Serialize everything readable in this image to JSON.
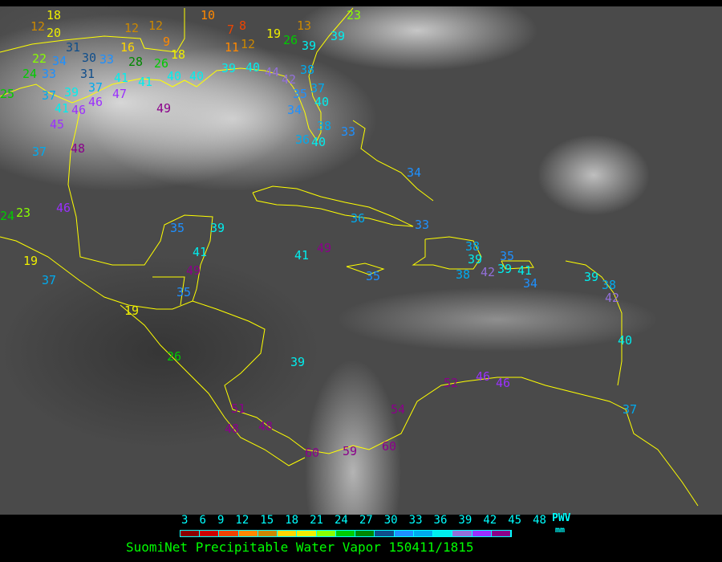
{
  "title": "SuomiNet Precipitable Water Vapor 150411/1815",
  "legend": {
    "unit_label": "PWV",
    "unit": "mm",
    "ticks": [
      "3",
      "6",
      "9",
      "12",
      "15",
      "18",
      "21",
      "24",
      "27",
      "30",
      "33",
      "36",
      "39",
      "42",
      "45",
      "48"
    ],
    "colors": [
      "#8b0000",
      "#cc0000",
      "#ee4400",
      "#ff8800",
      "#cc8800",
      "#ffd700",
      "#eeee00",
      "#88ff00",
      "#00cc00",
      "#008800",
      "#104e8b",
      "#1e90ff",
      "#00aaee",
      "#00eeee",
      "#9370db",
      "#9b30ff",
      "#8b008b"
    ]
  },
  "coastline_color": "#ffff00",
  "stations": [
    "12",
    "20",
    "18",
    "22",
    "24",
    "33",
    "31",
    "34",
    "30",
    "33",
    "31",
    "37",
    "41",
    "41",
    "25",
    "37",
    "39",
    "41",
    "46",
    "47",
    "46",
    "45",
    "48",
    "37",
    "49",
    "12",
    "12",
    "16",
    "9",
    "18",
    "28",
    "26",
    "40",
    "40",
    "39",
    "40",
    "44",
    "42",
    "38",
    "35",
    "37",
    "40",
    "34",
    "38",
    "33",
    "36",
    "40",
    "10",
    "7",
    "8",
    "11",
    "12",
    "13",
    "19",
    "26",
    "39",
    "39",
    "23",
    "24",
    "23",
    "46",
    "35",
    "39",
    "41",
    "49",
    "35",
    "19",
    "37",
    "19",
    "26",
    "39",
    "41",
    "49",
    "36",
    "33",
    "34",
    "35",
    "38",
    "39",
    "38",
    "42",
    "39",
    "35",
    "41",
    "34",
    "39",
    "38",
    "42",
    "40",
    "37",
    "51",
    "48",
    "48",
    "60",
    "59",
    "60",
    "54",
    "52",
    "46",
    "46"
  ]
}
